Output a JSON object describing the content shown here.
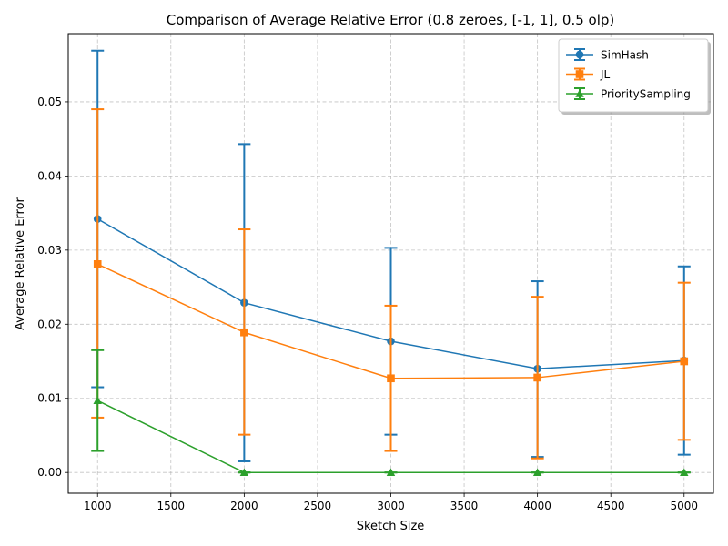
{
  "chart_data": {
    "type": "line",
    "title": "Comparison of Average Relative Error (0.8 zeroes, [-1, 1], 0.5 olp)",
    "xlabel": "Sketch Size",
    "ylabel": "Average Relative Error",
    "x": [
      1000,
      2000,
      3000,
      4000,
      5000
    ],
    "xlim": [
      800,
      5200
    ],
    "ylim": [
      -0.0028,
      0.0592
    ],
    "xticks": [
      "1000",
      "1500",
      "2000",
      "2500",
      "3000",
      "3500",
      "4000",
      "4500",
      "5000"
    ],
    "yticks": [
      "0.00",
      "0.01",
      "0.02",
      "0.03",
      "0.04",
      "0.05"
    ],
    "grid": true,
    "legend_position": "top-right",
    "series": [
      {
        "name": "SimHash",
        "color": "#1f77b4",
        "marker": "circle",
        "values": [
          0.0342,
          0.0229,
          0.0177,
          0.014,
          0.0151
        ],
        "err_low": [
          0.0115,
          0.0015,
          0.0051,
          0.0021,
          0.0024
        ],
        "err_high": [
          0.0569,
          0.0443,
          0.0303,
          0.0258,
          0.0278
        ]
      },
      {
        "name": "JL",
        "color": "#ff7f0e",
        "marker": "square",
        "values": [
          0.0281,
          0.0189,
          0.0127,
          0.0128,
          0.015
        ],
        "err_low": [
          0.0074,
          0.0051,
          0.0029,
          0.0019,
          0.0044
        ],
        "err_high": [
          0.049,
          0.0328,
          0.0225,
          0.0237,
          0.0256
        ]
      },
      {
        "name": "PrioritySampling",
        "color": "#2ca02c",
        "marker": "triangle",
        "values": [
          0.0097,
          0.0,
          0.0,
          0.0,
          0.0
        ],
        "err_low": [
          0.0029,
          0.0,
          0.0,
          0.0,
          0.0
        ],
        "err_high": [
          0.0165,
          0.0,
          0.0,
          0.0,
          0.0
        ]
      }
    ]
  }
}
